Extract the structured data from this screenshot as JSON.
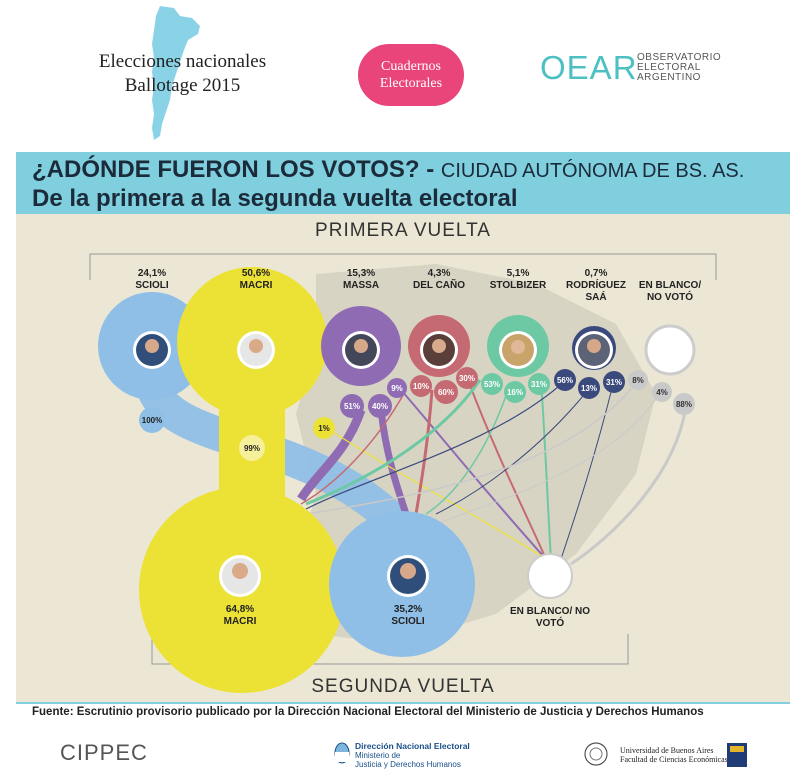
{
  "header": {
    "title_line1": "Elecciones nacionales",
    "title_line2": "Ballotage 2015",
    "badge_line1": "Cuadernos",
    "badge_line2": "Electorales",
    "org_mark": "OEAR",
    "org_line1": "OBSERVATORIO",
    "org_line2": "ELECTORAL",
    "org_line3": "ARGENTINO"
  },
  "title": {
    "main": "¿ADÓNDE FUERON LOS VOTOS? -",
    "region": "CIUDAD AUTÓNOMA DE BS. AS.",
    "subtitle": "De la primera a la segunda vuelta electoral"
  },
  "diagram": {
    "top_label": "PRIMERA VUELTA",
    "bottom_label": "SEGUNDA VUELTA",
    "first_round": [
      {
        "name": "SCIOLI",
        "pct": "24,1%",
        "color": "#8fbfe6"
      },
      {
        "name": "MACRI",
        "pct": "50,6%",
        "color": "#ece236"
      },
      {
        "name": "MASSA",
        "pct": "15,3%",
        "color": "#8f6bb3"
      },
      {
        "name": "DEL CAÑO",
        "pct": "4,3%",
        "color": "#c56a72"
      },
      {
        "name": "STOLBIZER",
        "pct": "5,1%",
        "color": "#6dc9a3"
      },
      {
        "name": "RODRÍGUEZ SAÁ",
        "pct": "0,7%",
        "color": "#3b4a7d"
      },
      {
        "name": "EN BLANCO/ NO VOTÓ",
        "pct": "",
        "color": "#cccccc"
      }
    ],
    "second_round": [
      {
        "name": "MACRI",
        "pct": "64,8%",
        "color": "#ece236"
      },
      {
        "name": "SCIOLI",
        "pct": "35,2%",
        "color": "#8fbfe6"
      },
      {
        "name": "EN BLANCO/ NO VOTÓ",
        "pct": "",
        "color": "#ffffff"
      }
    ],
    "transfers": {
      "scioli": [
        "100%"
      ],
      "macri": [
        "99%"
      ],
      "massa": [
        "1%",
        "51%",
        "40%",
        "9%"
      ],
      "delcano": [
        "10%",
        "60%",
        "30%"
      ],
      "stolbizer": [
        "53%",
        "16%",
        "31%"
      ],
      "rodriguez": [
        "56%",
        "13%",
        "31%"
      ],
      "blanco": [
        "8%",
        "4%",
        "88%"
      ]
    }
  },
  "footer": {
    "source": "Fuente: Escrutinio provisorio publicado por la Dirección Nacional Electoral del Ministerio de Justicia y Derechos Humanos",
    "cippec": "CIPPEC",
    "dne_line1": "Dirección Nacional Electoral",
    "dne_line2": "Ministerio de",
    "dne_line3": "Justicia y Derechos Humanos",
    "uba_line1": "Universidad de Buenos Aires",
    "uba_line2": "Facultad de Ciencias Económicas"
  }
}
